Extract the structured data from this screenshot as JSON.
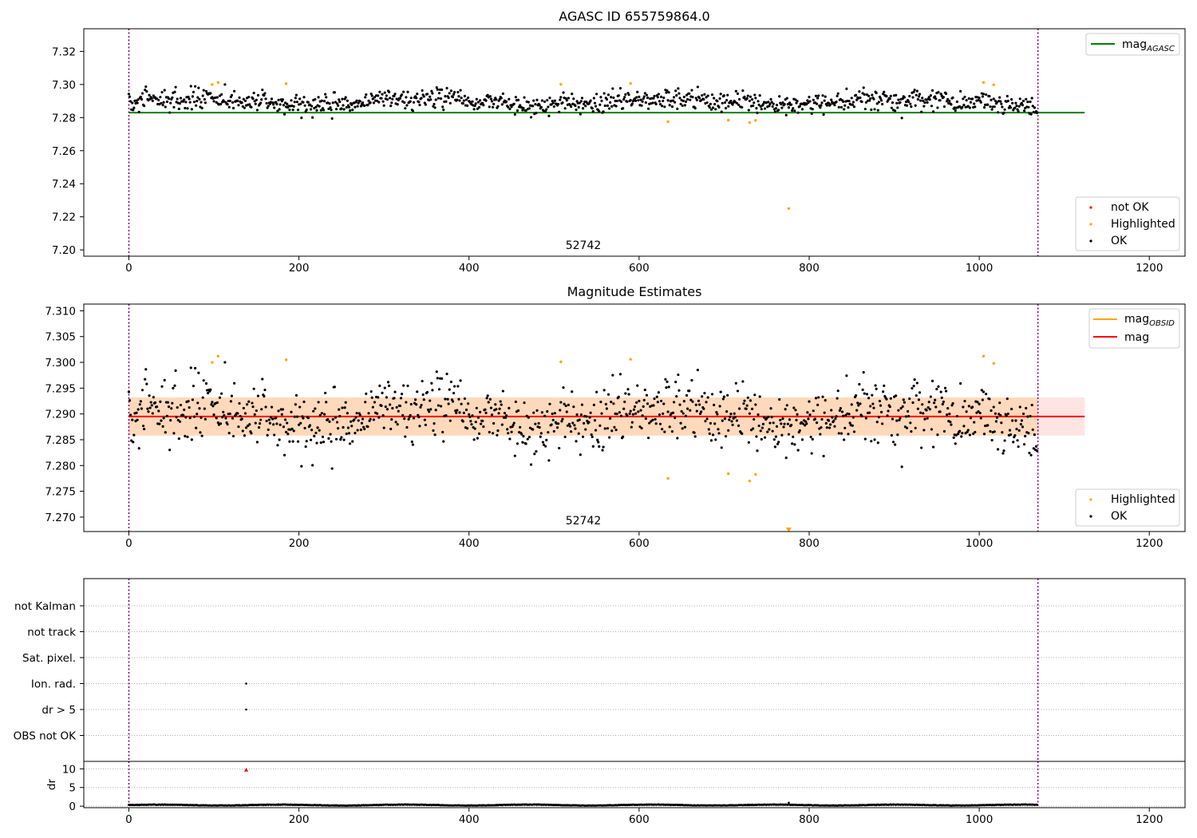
{
  "figure": {
    "obsid_annotation": "52742"
  },
  "chart_data": [
    {
      "type": "scatter",
      "title": "AGASC ID 655759864.0",
      "xlabel": "",
      "ylabel": "",
      "xlim": [
        -53,
        1242
      ],
      "ylim": [
        7.1962,
        7.3337
      ],
      "x_ticks": [
        0,
        200,
        400,
        600,
        800,
        1000,
        1200
      ],
      "y_ticks": [
        7.2,
        7.22,
        7.24,
        7.26,
        7.28,
        7.3,
        7.32
      ],
      "y_tick_labels": [
        "7.20",
        "7.22",
        "7.24",
        "7.26",
        "7.28",
        "7.30",
        "7.32"
      ],
      "vlines": [
        0,
        1069
      ],
      "hline": {
        "name": "mag_AGASC",
        "value": 7.283,
        "x_range": [
          0,
          1124
        ],
        "color": "#008000"
      },
      "legend_upper": [
        {
          "label": "mag",
          "subscript": "AGASC",
          "color": "#008000",
          "kind": "line"
        }
      ],
      "legend_lower": [
        {
          "label": "not OK",
          "color": "#ff0000",
          "kind": "dot"
        },
        {
          "label": "Highlighted",
          "color": "#ffa500",
          "kind": "dot"
        },
        {
          "label": "OK",
          "color": "#000000",
          "kind": "dot"
        }
      ],
      "series": [
        {
          "name": "OK",
          "color": "#000000",
          "x_range": [
            0,
            1069
          ],
          "count": 1069,
          "values_summary": {
            "mean": 7.2895,
            "sd": 0.0035
          }
        },
        {
          "name": "Highlighted",
          "color": "#ffa500",
          "points": [
            [
              98,
              7.3
            ],
            [
              105,
              7.3012
            ],
            [
              185,
              7.3005
            ],
            [
              508,
              7.3001
            ],
            [
              590,
              7.3006
            ],
            [
              634,
              7.2775
            ],
            [
              705,
              7.2784
            ],
            [
              730,
              7.277
            ],
            [
              737,
              7.2783
            ],
            [
              776,
              7.225
            ],
            [
              1005,
              7.3012
            ],
            [
              1017,
              7.2998
            ]
          ]
        }
      ]
    },
    {
      "type": "scatter",
      "title": "Magnitude Estimates",
      "xlabel": "",
      "ylabel": "",
      "xlim": [
        -53,
        1242
      ],
      "ylim": [
        7.2672,
        7.3113
      ],
      "x_ticks": [
        0,
        200,
        400,
        600,
        800,
        1000,
        1200
      ],
      "y_ticks": [
        7.27,
        7.275,
        7.28,
        7.285,
        7.29,
        7.295,
        7.3,
        7.305,
        7.31
      ],
      "y_tick_labels": [
        "7.270",
        "7.275",
        "7.280",
        "7.285",
        "7.290",
        "7.295",
        "7.300",
        "7.305",
        "7.310"
      ],
      "vlines": [
        0,
        1069
      ],
      "band": {
        "low": 7.2858,
        "high": 7.2932,
        "x_range": [
          0,
          1124
        ]
      },
      "hlines": [
        {
          "name": "mag",
          "value": 7.2895,
          "x_range": [
            0,
            1124
          ],
          "color": "#ff0000"
        }
      ],
      "legend_upper": [
        {
          "label": "mag",
          "subscript": "OBSID",
          "color": "#ffa500",
          "kind": "line"
        },
        {
          "label": "mag",
          "subscript": "",
          "color": "#ff0000",
          "kind": "line"
        }
      ],
      "legend_lower": [
        {
          "label": "Highlighted",
          "color": "#ffa500",
          "kind": "dot"
        },
        {
          "label": "OK",
          "color": "#000000",
          "kind": "dot"
        }
      ],
      "series": [
        {
          "name": "OK",
          "color": "#000000",
          "x_range": [
            0,
            1069
          ],
          "count": 1069,
          "values_summary": {
            "mean": 7.2895,
            "sd": 0.0035
          }
        },
        {
          "name": "Highlighted",
          "color": "#ffa500",
          "points": [
            [
              98,
              7.3
            ],
            [
              105,
              7.3012
            ],
            [
              185,
              7.3005
            ],
            [
              508,
              7.3001
            ],
            [
              590,
              7.3006
            ],
            [
              634,
              7.2775
            ],
            [
              705,
              7.2784
            ],
            [
              730,
              7.277
            ],
            [
              737,
              7.2783
            ],
            [
              1005,
              7.3012
            ],
            [
              1017,
              7.2998
            ]
          ]
        },
        {
          "name": "Highlighted (off-scale)",
          "color": "#ffa500",
          "marker": "triangle-down",
          "points": [
            [
              776,
              7.2675
            ]
          ]
        }
      ]
    },
    {
      "type": "scatter",
      "title": "",
      "xlim": [
        -53,
        1242
      ],
      "categories": [
        "not Kalman",
        "not track",
        "Sat. pixel.",
        "Ion. rad.",
        "dr > 5",
        "OBS not OK"
      ],
      "vlines": [
        0,
        1069
      ],
      "series": [
        {
          "name": "Ion. rad.",
          "color": "#000000",
          "points": [
            [
              138,
              "Ion. rad."
            ]
          ]
        },
        {
          "name": "dr > 5",
          "color": "#000000",
          "points": [
            [
              138,
              "dr > 5"
            ]
          ]
        }
      ]
    },
    {
      "type": "scatter",
      "title": "",
      "ylabel": "dr",
      "xlim": [
        -53,
        1242
      ],
      "ylim": [
        -0.4,
        12.0
      ],
      "x_ticks": [
        0,
        200,
        400,
        600,
        800,
        1000,
        1200
      ],
      "y_ticks": [
        0,
        5,
        10
      ],
      "y_tick_labels": [
        "0",
        "5",
        "10"
      ],
      "vlines": [
        0,
        1069
      ],
      "series": [
        {
          "name": "OK",
          "color": "#000000",
          "x_range": [
            0,
            1069
          ],
          "count": 1069,
          "values_summary": {
            "typical": 0.3,
            "max": 0.9
          }
        },
        {
          "name": "not OK",
          "color": "#ff0000",
          "marker": "triangle-up",
          "points": [
            [
              138,
              9.7
            ]
          ]
        }
      ]
    }
  ]
}
